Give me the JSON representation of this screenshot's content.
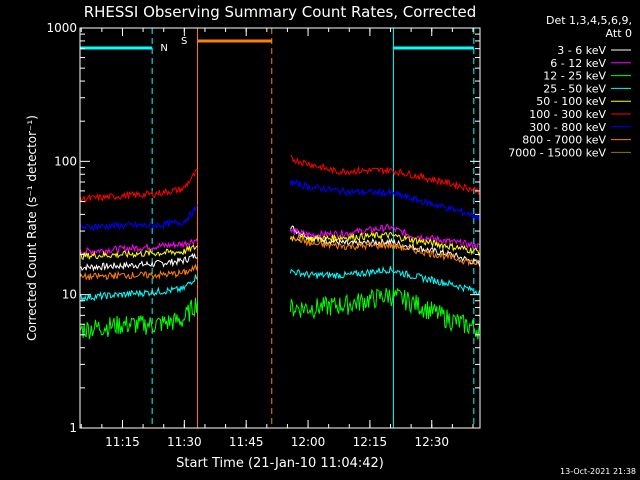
{
  "chart_data": {
    "type": "line",
    "title": "RHESSI Observing Summary Count Rates, Corrected",
    "xlabel": "Start Time (21-Jan-10 11:04:42)",
    "ylabel": "Corrected Count Rate (s⁻¹ detector⁻¹)",
    "yscale": "log",
    "ylim": [
      1,
      1000
    ],
    "y_tick_labels": [
      "1",
      "10",
      "100",
      "1000"
    ],
    "xlim_minutes": [
      0,
      97
    ],
    "x_ticks": [
      {
        "min": 10.3,
        "label": "11:15"
      },
      {
        "min": 25.3,
        "label": "11:30"
      },
      {
        "min": 40.3,
        "label": "11:45"
      },
      {
        "min": 55.3,
        "label": "12:00"
      },
      {
        "min": 70.3,
        "label": "12:15"
      },
      {
        "min": 85.3,
        "label": "12:30"
      }
    ],
    "legend_header": [
      "Det 1,3,4,5,6,9,",
      "Att 0"
    ],
    "series": [
      {
        "name": "3 - 6 keV",
        "color": "#ffffff",
        "pre": [
          [
            0,
            16
          ],
          [
            10,
            16.5
          ],
          [
            18,
            17
          ],
          [
            25,
            18
          ],
          [
            28.5,
            20
          ]
        ],
        "post": [
          [
            51,
            32
          ],
          [
            56,
            27
          ],
          [
            65,
            24
          ],
          [
            75,
            25
          ],
          [
            80,
            23
          ],
          [
            90,
            20
          ],
          [
            97,
            17
          ]
        ]
      },
      {
        "name": "6 - 12 keV",
        "color": "#ff00ff",
        "pre": [
          [
            0,
            21
          ],
          [
            10,
            22
          ],
          [
            18,
            23
          ],
          [
            25,
            24
          ],
          [
            28.5,
            26
          ]
        ],
        "post": [
          [
            51,
            30
          ],
          [
            56,
            28
          ],
          [
            65,
            29
          ],
          [
            75,
            32
          ],
          [
            80,
            28
          ],
          [
            90,
            25
          ],
          [
            97,
            23
          ]
        ]
      },
      {
        "name": "12 - 25 keV",
        "color": "#00ff00",
        "pre": [
          [
            0,
            5.5
          ],
          [
            10,
            6
          ],
          [
            18,
            6
          ],
          [
            25,
            6.5
          ],
          [
            28.5,
            9
          ]
        ],
        "post": [
          [
            51,
            8
          ],
          [
            56,
            8
          ],
          [
            65,
            8.5
          ],
          [
            75,
            10
          ],
          [
            80,
            9
          ],
          [
            90,
            6.5
          ],
          [
            97,
            5.5
          ]
        ]
      },
      {
        "name": "25 - 50 keV",
        "color": "#00ffff",
        "pre": [
          [
            0,
            9.5
          ],
          [
            10,
            10
          ],
          [
            18,
            10.5
          ],
          [
            25,
            11
          ],
          [
            28.5,
            14
          ]
        ],
        "post": [
          [
            51,
            15
          ],
          [
            56,
            14
          ],
          [
            65,
            14
          ],
          [
            75,
            15.5
          ],
          [
            80,
            14
          ],
          [
            90,
            12
          ],
          [
            97,
            10.5
          ]
        ]
      },
      {
        "name": "50 - 100 keV",
        "color": "#ffff00",
        "pre": [
          [
            0,
            19.5
          ],
          [
            10,
            20
          ],
          [
            18,
            20.5
          ],
          [
            25,
            21
          ],
          [
            28.5,
            23
          ]
        ],
        "post": [
          [
            51,
            27
          ],
          [
            56,
            26
          ],
          [
            65,
            27
          ],
          [
            75,
            28
          ],
          [
            80,
            26
          ],
          [
            90,
            23
          ],
          [
            97,
            21
          ]
        ]
      },
      {
        "name": "100 - 300 keV",
        "color": "#ff0000",
        "pre": [
          [
            0,
            52
          ],
          [
            10,
            55
          ],
          [
            18,
            57
          ],
          [
            25,
            62
          ],
          [
            28.5,
            85
          ]
        ],
        "post": [
          [
            51,
            105
          ],
          [
            56,
            95
          ],
          [
            62,
            84
          ],
          [
            68,
            85
          ],
          [
            75,
            86
          ],
          [
            80,
            80
          ],
          [
            90,
            68
          ],
          [
            97,
            60
          ]
        ]
      },
      {
        "name": "300 - 800 keV",
        "color": "#0000ff",
        "pre": [
          [
            0,
            32
          ],
          [
            10,
            33
          ],
          [
            18,
            33
          ],
          [
            25,
            35
          ],
          [
            28.5,
            45
          ]
        ],
        "post": [
          [
            51,
            70
          ],
          [
            56,
            64
          ],
          [
            65,
            59
          ],
          [
            75,
            58
          ],
          [
            80,
            53
          ],
          [
            90,
            44
          ],
          [
            97,
            38
          ]
        ]
      },
      {
        "name": "800 - 7000 keV",
        "color": "#ff8000",
        "pre": [
          [
            0,
            13.5
          ],
          [
            10,
            14
          ],
          [
            18,
            14
          ],
          [
            25,
            14.5
          ],
          [
            28.5,
            16
          ]
        ],
        "post": [
          [
            51,
            28
          ],
          [
            56,
            24
          ],
          [
            65,
            23
          ],
          [
            75,
            23.5
          ],
          [
            80,
            22
          ],
          [
            90,
            19
          ],
          [
            97,
            17
          ]
        ]
      },
      {
        "name": "7000 - 15000 keV",
        "color": "#808000",
        "pre": [],
        "post": []
      }
    ],
    "annotations": [
      {
        "label": "N",
        "color": "#00ffff"
      },
      {
        "label": "S",
        "color": "#ff8000"
      }
    ],
    "footer_stamp": "13-Oct-2021 21:38"
  }
}
